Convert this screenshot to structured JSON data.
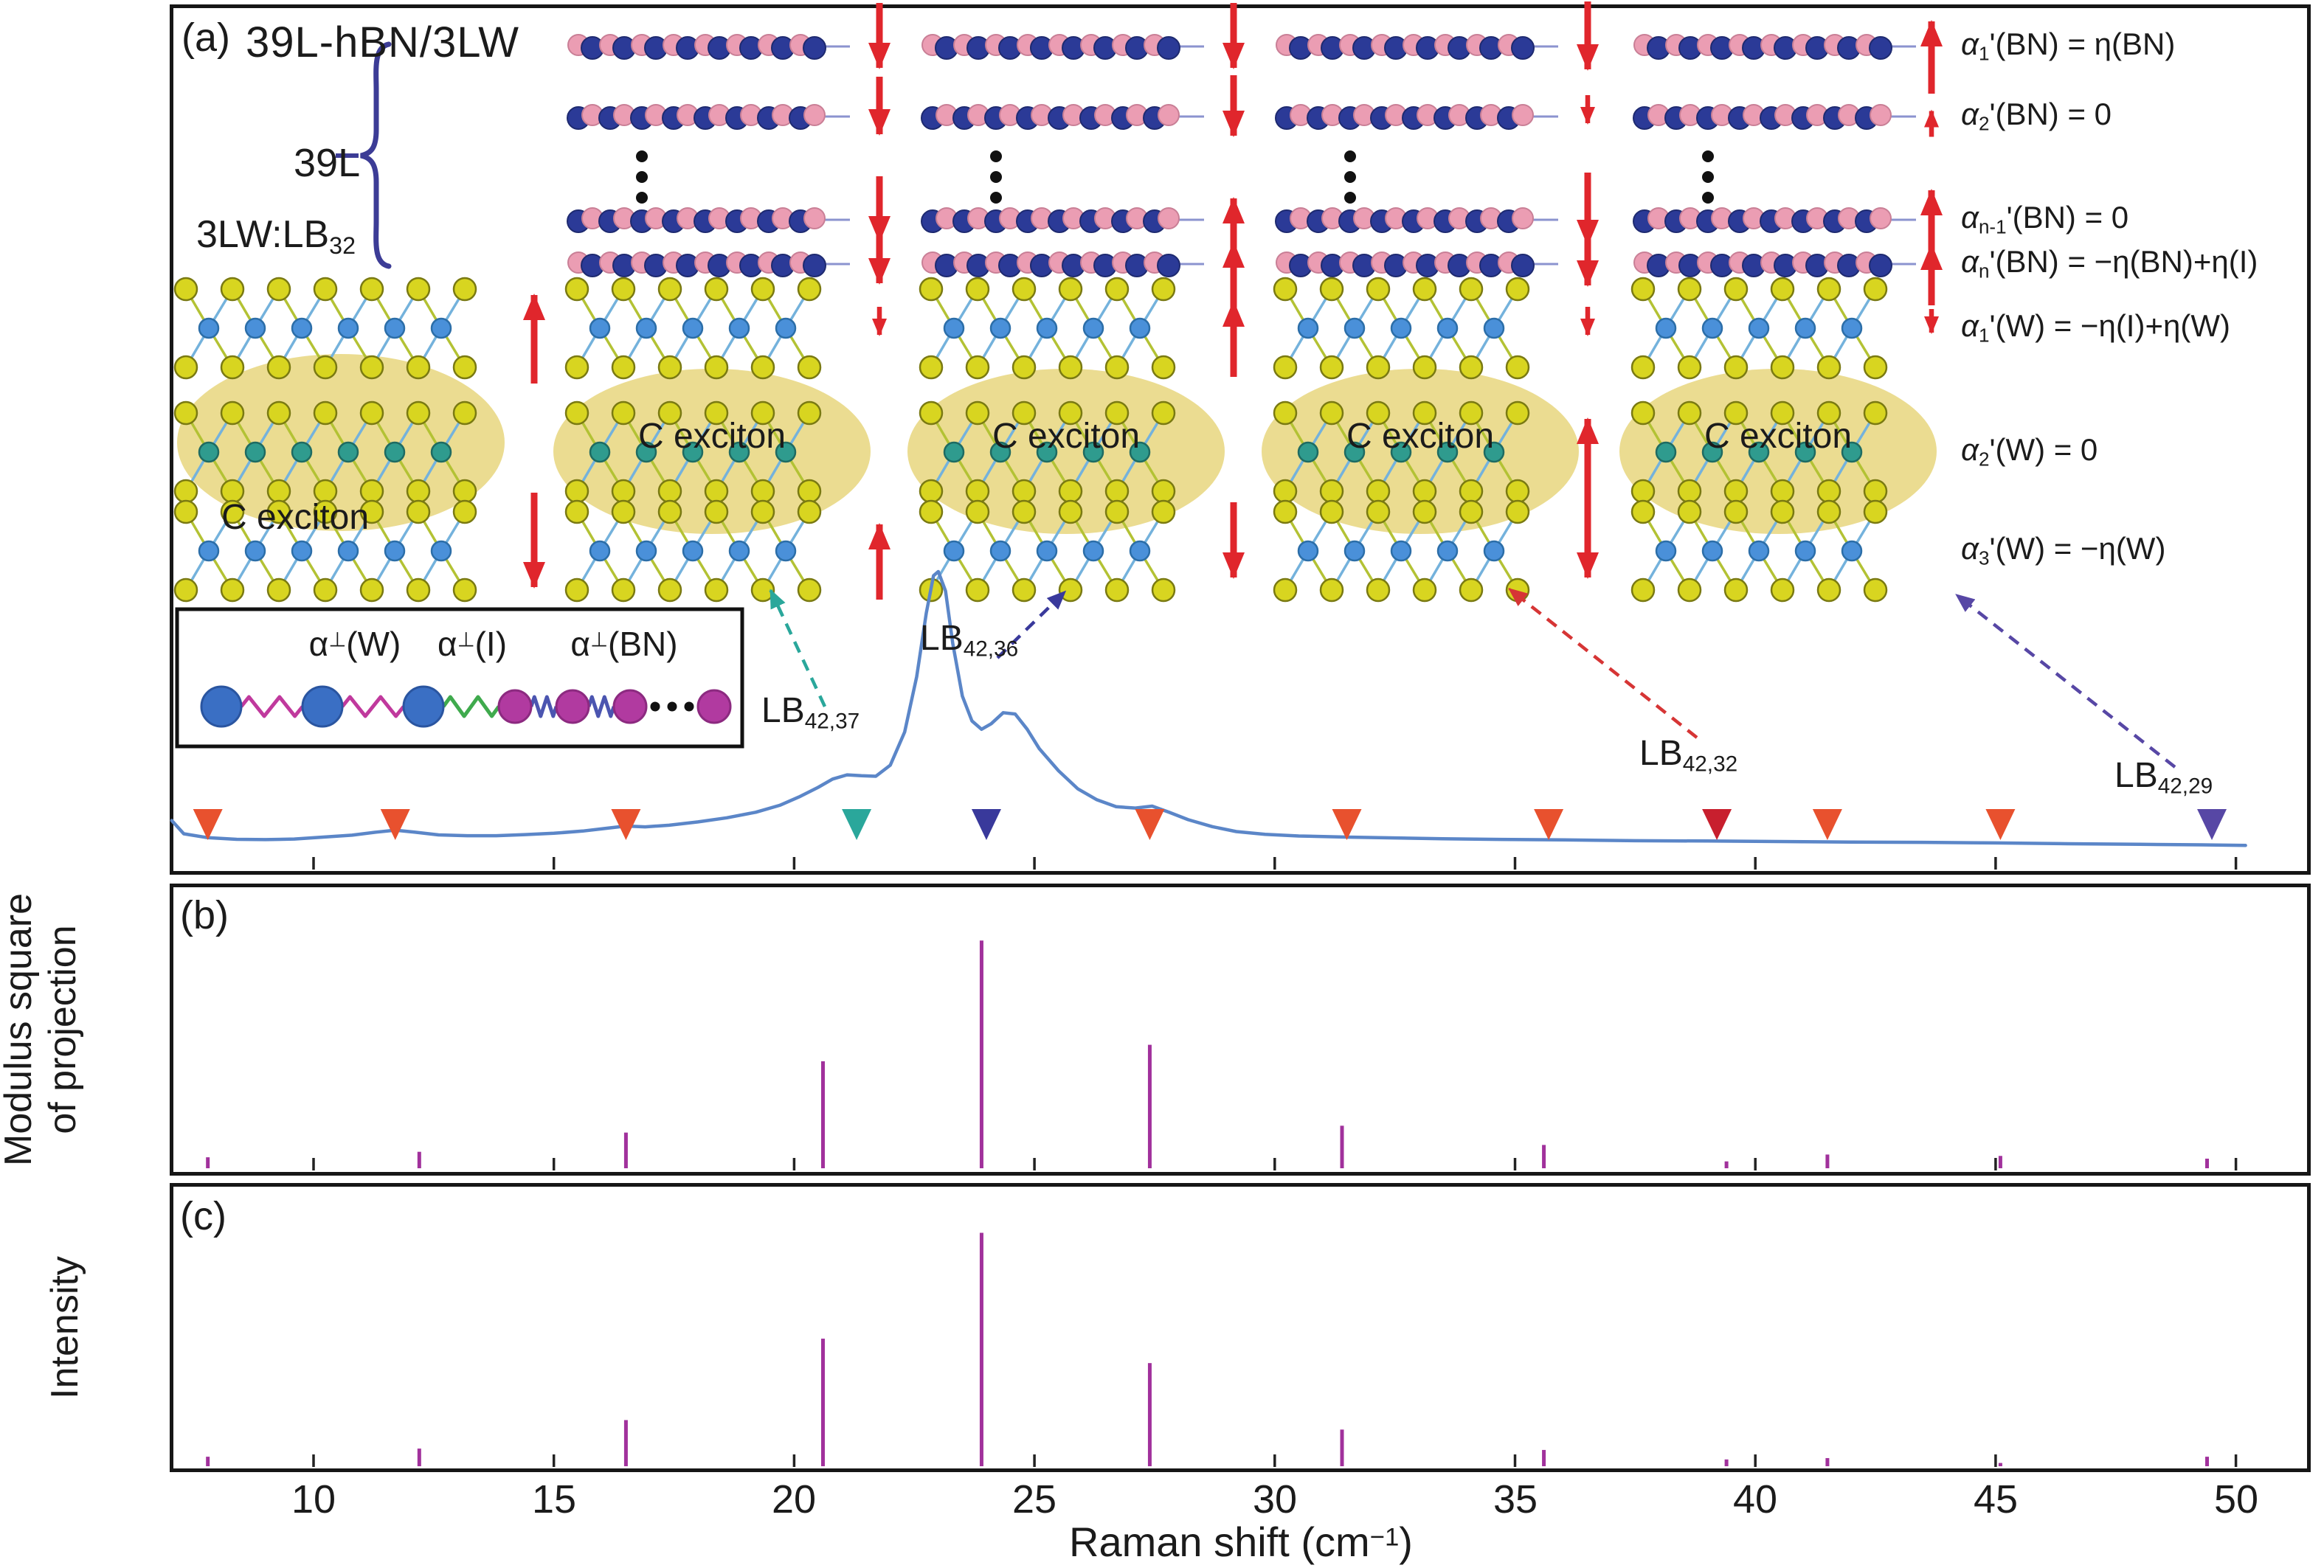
{
  "figure": {
    "panel_letters": [
      "(a)",
      "(b)",
      "(c)"
    ],
    "title": "39L-hBN/3LW",
    "stack_label": "39L",
    "trilayer_label": {
      "pre": "3LW:LB",
      "sub": "32"
    },
    "exciton_label": "C exciton",
    "ylabel_b": [
      "Modulus square",
      "of projection"
    ],
    "ylabel_c": "Intensity",
    "xlabel": {
      "pre": "Raman shift (cm",
      "sup": "−1",
      "post": ")"
    },
    "equations": [
      {
        "pre": "α",
        "sub": "1",
        "rest": "'(BN) = η(BN)"
      },
      {
        "pre": "α",
        "sub": "2",
        "rest": "'(BN) = 0"
      },
      {
        "pre": "α",
        "sub": "n-1",
        "rest": "'(BN) = 0"
      },
      {
        "pre": "α",
        "sub": "n",
        "rest": "'(BN) = −η(BN)+η(I)"
      },
      {
        "pre": "α",
        "sub": "1",
        "rest": "'(W) = −η(I)+η(W)"
      },
      {
        "pre": "α",
        "sub": "2",
        "rest": "'(W) = 0"
      },
      {
        "pre": "α",
        "sub": "3",
        "rest": "'(W) = −η(W)"
      }
    ],
    "spring_labels": [
      {
        "pre": "α",
        "sup": "⊥",
        "rest": "(W)"
      },
      {
        "pre": "α",
        "sup": "⊥",
        "rest": "(I)"
      },
      {
        "pre": "α",
        "sup": "⊥",
        "rest": "(BN)"
      }
    ],
    "lb_labels": [
      {
        "pre": "LB",
        "sub": "42,37"
      },
      {
        "pre": "LB",
        "sub": "42,36"
      },
      {
        "pre": "LB",
        "sub": "42,32"
      },
      {
        "pre": "LB",
        "sub": "42,29"
      }
    ]
  },
  "chart_data": {
    "type": "composite",
    "xlabel": "Raman shift (cm-1)",
    "xlim": [
      7.0,
      50.3
    ],
    "xticks": [
      10,
      15,
      20,
      25,
      30,
      35,
      40,
      45,
      50
    ],
    "panels": [
      {
        "id": "a",
        "content": "measured Raman spectrum of 39L-hBN/3LW with LB mode markers and structure schematic"
      },
      {
        "id": "b",
        "ylabel": "Modulus square of projection",
        "type": "stick"
      },
      {
        "id": "c",
        "ylabel": "Intensity",
        "type": "stick"
      }
    ],
    "spectrum": {
      "name": "Raman spectrum",
      "color": "#5b86c8",
      "points": [
        [
          7.05,
          0.1
        ],
        [
          7.3,
          0.052
        ],
        [
          7.8,
          0.038
        ],
        [
          8.4,
          0.032
        ],
        [
          9.0,
          0.031
        ],
        [
          9.6,
          0.033
        ],
        [
          10.2,
          0.04
        ],
        [
          10.8,
          0.047
        ],
        [
          11.3,
          0.058
        ],
        [
          11.7,
          0.065
        ],
        [
          12.1,
          0.058
        ],
        [
          12.6,
          0.048
        ],
        [
          13.2,
          0.045
        ],
        [
          13.8,
          0.045
        ],
        [
          14.4,
          0.049
        ],
        [
          15.0,
          0.054
        ],
        [
          15.6,
          0.062
        ],
        [
          16.1,
          0.072
        ],
        [
          16.5,
          0.08
        ],
        [
          16.9,
          0.077
        ],
        [
          17.4,
          0.083
        ],
        [
          18.0,
          0.095
        ],
        [
          18.6,
          0.11
        ],
        [
          19.2,
          0.13
        ],
        [
          19.7,
          0.155
        ],
        [
          20.1,
          0.185
        ],
        [
          20.5,
          0.22
        ],
        [
          20.8,
          0.25
        ],
        [
          21.1,
          0.265
        ],
        [
          21.4,
          0.262
        ],
        [
          21.7,
          0.26
        ],
        [
          22.0,
          0.3
        ],
        [
          22.3,
          0.42
        ],
        [
          22.55,
          0.62
        ],
        [
          22.75,
          0.85
        ],
        [
          22.9,
          0.985
        ],
        [
          23.0,
          1.0
        ],
        [
          23.15,
          0.93
        ],
        [
          23.3,
          0.74
        ],
        [
          23.5,
          0.55
        ],
        [
          23.7,
          0.46
        ],
        [
          23.9,
          0.43
        ],
        [
          24.1,
          0.45
        ],
        [
          24.35,
          0.49
        ],
        [
          24.6,
          0.485
        ],
        [
          24.85,
          0.43
        ],
        [
          25.1,
          0.36
        ],
        [
          25.5,
          0.28
        ],
        [
          25.9,
          0.215
        ],
        [
          26.3,
          0.175
        ],
        [
          26.7,
          0.15
        ],
        [
          27.1,
          0.145
        ],
        [
          27.45,
          0.152
        ],
        [
          27.8,
          0.13
        ],
        [
          28.2,
          0.103
        ],
        [
          28.7,
          0.078
        ],
        [
          29.2,
          0.06
        ],
        [
          29.8,
          0.05
        ],
        [
          30.5,
          0.044
        ],
        [
          31.5,
          0.04
        ],
        [
          32.5,
          0.037
        ],
        [
          33.5,
          0.034
        ],
        [
          34.5,
          0.032
        ],
        [
          36.0,
          0.03
        ],
        [
          37.5,
          0.027
        ],
        [
          39.0,
          0.026
        ],
        [
          40.5,
          0.024
        ],
        [
          42.0,
          0.022
        ],
        [
          43.5,
          0.021
        ],
        [
          45.0,
          0.019
        ],
        [
          46.5,
          0.016
        ],
        [
          48.0,
          0.014
        ],
        [
          49.3,
          0.012
        ],
        [
          50.2,
          0.01
        ]
      ]
    },
    "sticks": {
      "color": "#a1319c",
      "positions": [
        7.8,
        12.2,
        16.5,
        20.6,
        23.9,
        27.4,
        31.4,
        35.6,
        39.4,
        41.5,
        45.1,
        49.4
      ],
      "b_heights": [
        0.04,
        0.06,
        0.13,
        0.39,
        0.83,
        0.45,
        0.155,
        0.085,
        0.025,
        0.05,
        0.045,
        0.035
      ],
      "c_heights": [
        0.035,
        0.065,
        0.17,
        0.47,
        0.86,
        0.38,
        0.135,
        0.06,
        0.025,
        0.03,
        0.012,
        0.035
      ]
    },
    "markers": [
      {
        "x": 7.8,
        "color": "orange"
      },
      {
        "x": 11.7,
        "color": "orange"
      },
      {
        "x": 16.5,
        "color": "orange"
      },
      {
        "x": 21.3,
        "color": "teal",
        "label": "LB42,37"
      },
      {
        "x": 24.0,
        "color": "navy",
        "label": "LB42,36"
      },
      {
        "x": 27.4,
        "color": "orange"
      },
      {
        "x": 31.5,
        "color": "orange"
      },
      {
        "x": 35.7,
        "color": "orange"
      },
      {
        "x": 39.2,
        "color": "red",
        "label": "LB42,32"
      },
      {
        "x": 41.5,
        "color": "orange"
      },
      {
        "x": 45.1,
        "color": "orange"
      },
      {
        "x": 49.5,
        "color": "purple",
        "label": "LB42,29"
      }
    ],
    "marker_colors": {
      "orange": "#e8512e",
      "red": "#c81f2e",
      "teal": "#2aa79b",
      "navy": "#39399b",
      "purple": "#5747a5"
    }
  },
  "colors": {
    "arrow_red": "#e0262c",
    "spectrum_blue": "#5b86c8",
    "stick_purple": "#a1319c",
    "ellipse_yellow": "#ead989",
    "bn_blue": "#2b3a97",
    "bn_pink": "#eb9db3",
    "w_sulfur_yellow": "#d8d520",
    "w_metal_blue": "#4a90d9",
    "w_metal_teal": "#2f9b8e",
    "spring_magenta": "#c0399d",
    "spring_green": "#3faa4d",
    "spring_blue": "#4b55b0",
    "ball_blue": "#3a6fc4",
    "ball_purple": "#b13aa0",
    "brace_blue": "#3c3c96"
  }
}
